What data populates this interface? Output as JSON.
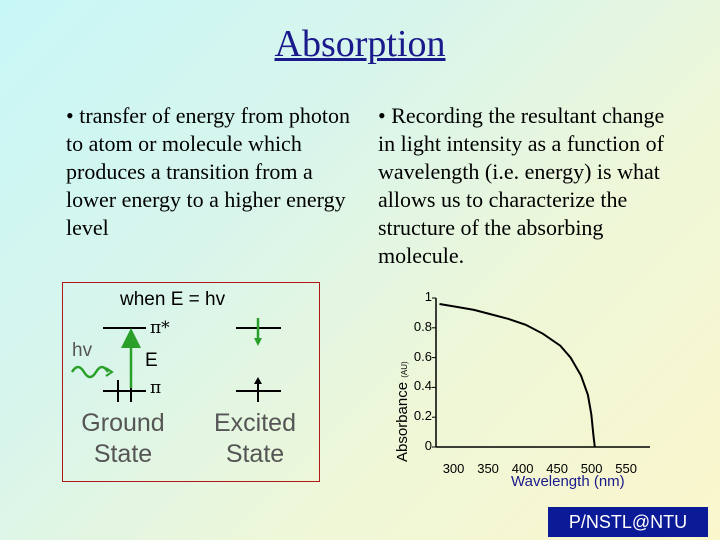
{
  "slide": {
    "title": "Absorption",
    "left_bullet": "• transfer of energy from photon to atom or molecule which produces a transition from a lower energy to a higher energy level",
    "right_bullet": "• Recording the resultant change in light intensity as a function of wavelength (i.e. energy) is what allows us to characterize the structure of the absorbing molecule.",
    "footer": "P/NSTL@NTU"
  },
  "diagram": {
    "condition": "when E = hv",
    "photon_label": "hv",
    "energy_gap_label": "E",
    "upper_level_symbol": "π*",
    "lower_level_symbol": "π",
    "ground_state_label": "Ground State",
    "excited_state_label": "Excited State",
    "arrow_color": "#2aa02a",
    "photon_color": "#2aa02a",
    "box_border_color": "#b01818",
    "level_colors": [
      "#000000"
    ]
  },
  "chart_data": {
    "type": "line",
    "xlabel": "Wavelength (nm)",
    "ylabel": "Absorbance",
    "ylabel_unit": "(AU)",
    "x_ticks": [
      300,
      350,
      400,
      450,
      500,
      550
    ],
    "y_ticks": [
      "1",
      "0.8",
      "0.6",
      "0.4",
      "0.2",
      "0"
    ],
    "xlim": [
      270,
      580
    ],
    "ylim": [
      0,
      1
    ],
    "grid": false,
    "series": [
      {
        "color": "#000000",
        "x": [
          275,
          300,
          325,
          350,
          375,
          400,
          425,
          450,
          465,
          480,
          490,
          495,
          498,
          500
        ],
        "y": [
          0.96,
          0.94,
          0.92,
          0.89,
          0.86,
          0.82,
          0.76,
          0.68,
          0.6,
          0.48,
          0.35,
          0.22,
          0.08,
          0.0
        ]
      }
    ]
  }
}
